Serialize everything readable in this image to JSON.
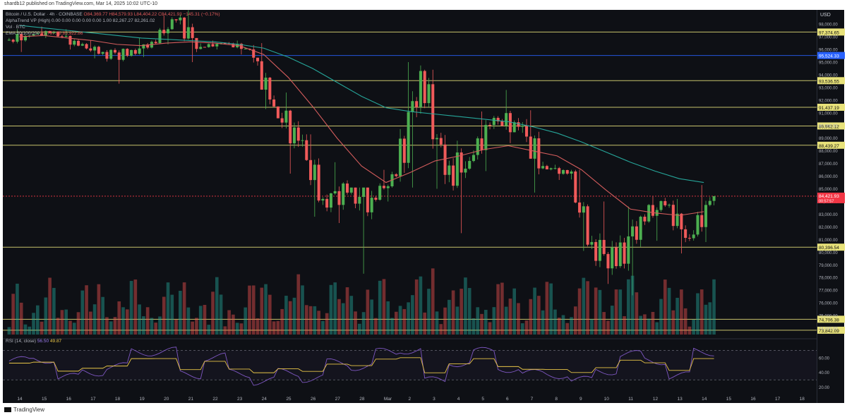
{
  "header": {
    "published_line": "shardb12 published on TradingView.com, Mar 14, 2025 10:02 UTC-10"
  },
  "legend": {
    "symbol_line": "Bitcoin / U.S. Dollar · 4h · COINBASE",
    "ohlc": "O84,369.77 H84,579.93 L84,404.22 C84,421.93 −145.31 (−0.17%)",
    "indicator1": "AlphaTrend VP (High)",
    "indicator1_values": "0.00 0.00 0.00 0.00 0.00 1.00 82,267.27 82,261.02",
    "indicator2": "Vol · BTC",
    "indicator3": "EMA 50/100/200",
    "indicator3_values": "83,797.49 85,922.86"
  },
  "rsi": {
    "label": "RSI (14, close)",
    "value1": "56.50",
    "value2": "49.87"
  },
  "footer": {
    "brand": "TradingView"
  },
  "price_axis": {
    "currency": "USD",
    "ticks": [
      "98,000.00",
      "97,000.00",
      "96,000.00",
      "95,000.00",
      "94,000.00",
      "93,000.00",
      "92,000.00",
      "91,000.00",
      "90,000.00",
      "89,000.00",
      "88,000.00",
      "87,000.00",
      "86,000.00",
      "85,000.00",
      "84,000.00",
      "83,000.00",
      "82,000.00",
      "81,000.00",
      "80,000.00",
      "79,000.00",
      "78,000.00",
      "77,000.00",
      "76,000.00",
      "75,000.00",
      "74,000.00"
    ],
    "ticks_numeric": [
      98000,
      97000,
      96000,
      95000,
      94000,
      93000,
      92000,
      91000,
      90000,
      89000,
      88000,
      87000,
      86000,
      85000,
      84000,
      83000,
      82000,
      81000,
      80000,
      79000,
      78000,
      77000,
      76000,
      75000,
      74000
    ],
    "range": [
      73500,
      98900
    ]
  },
  "levels": [
    {
      "label": "97,374.65",
      "value": 97374.65,
      "color": "#e8e27a"
    },
    {
      "label": "95,524.33",
      "value": 95524.33,
      "color": "#2962ff"
    },
    {
      "label": "93,536.55",
      "value": 93536.55,
      "color": "#e8e27a"
    },
    {
      "label": "91,437.19",
      "value": 91437.19,
      "color": "#e8e27a"
    },
    {
      "label": "89,962.12",
      "value": 89962.12,
      "color": "#e8e27a"
    },
    {
      "label": "88,439.27",
      "value": 88439.27,
      "color": "#e8e27a"
    },
    {
      "label": "80,396.54",
      "value": 80396.54,
      "color": "#e8e27a"
    },
    {
      "label": "74,706.38",
      "value": 74706.38,
      "color": "#e8e27a"
    },
    {
      "label": "73,842.09",
      "value": 73842.09,
      "color": "#e8e27a"
    }
  ],
  "current_price": {
    "label": "84,421.93",
    "sub": "00:57:57",
    "value": 84421.93,
    "color": "#f23645"
  },
  "rsi_axis": {
    "ticks": [
      "60.00",
      "40.00",
      "20.00"
    ],
    "ticks_numeric": [
      60,
      40,
      20
    ]
  },
  "time_axis": {
    "labels": [
      "14",
      "15",
      "16",
      "17",
      "18",
      "19",
      "20",
      "21",
      "22",
      "23",
      "24",
      "25",
      "26",
      "27",
      "28",
      "Mar",
      "2",
      "3",
      "4",
      "5",
      "6",
      "7",
      "8",
      "9",
      "10",
      "11",
      "12",
      "13",
      "14",
      "15",
      "16",
      "17",
      "18"
    ]
  },
  "chart_data": {
    "type": "candlestick",
    "symbol": "Bitcoin / U.S. Dollar",
    "timeframe": "4h",
    "exchange": "COINBASE",
    "ylim": [
      73500,
      98900
    ],
    "x_categories": [
      "14",
      "15",
      "16",
      "17",
      "18",
      "19",
      "20",
      "21",
      "22",
      "23",
      "24",
      "25",
      "26",
      "27",
      "28",
      "Mar",
      "2",
      "3",
      "4",
      "5",
      "6",
      "7",
      "8",
      "9",
      "10",
      "11",
      "12",
      "13",
      "14",
      "15",
      "16",
      "17",
      "18"
    ],
    "daily_ohlc": [
      {
        "day": "14",
        "o": 96700,
        "h": 97600,
        "l": 95800,
        "c": 97100
      },
      {
        "day": "15",
        "o": 97100,
        "h": 97800,
        "l": 96900,
        "c": 97400
      },
      {
        "day": "16",
        "o": 97400,
        "h": 97600,
        "l": 96000,
        "c": 96300
      },
      {
        "day": "17",
        "o": 96300,
        "h": 96700,
        "l": 95300,
        "c": 95800
      },
      {
        "day": "18",
        "o": 95800,
        "h": 96100,
        "l": 93300,
        "c": 95500
      },
      {
        "day": "19",
        "o": 95500,
        "h": 96900,
        "l": 95400,
        "c": 96600
      },
      {
        "day": "20",
        "o": 96600,
        "h": 98700,
        "l": 96400,
        "c": 98300
      },
      {
        "day": "21",
        "o": 98300,
        "h": 99100,
        "l": 95000,
        "c": 96200
      },
      {
        "day": "22",
        "o": 96200,
        "h": 96700,
        "l": 96000,
        "c": 96500
      },
      {
        "day": "23",
        "o": 96500,
        "h": 96700,
        "l": 95600,
        "c": 96000
      },
      {
        "day": "24",
        "o": 96000,
        "h": 96500,
        "l": 91300,
        "c": 91500
      },
      {
        "day": "25",
        "o": 91500,
        "h": 92600,
        "l": 86200,
        "c": 88800
      },
      {
        "day": "26",
        "o": 88800,
        "h": 89300,
        "l": 82800,
        "c": 84200
      },
      {
        "day": "27",
        "o": 84200,
        "h": 87100,
        "l": 82300,
        "c": 84700
      },
      {
        "day": "28",
        "o": 84700,
        "h": 85100,
        "l": 78300,
        "c": 84300
      },
      {
        "day": "Mar",
        "o": 84300,
        "h": 86500,
        "l": 84000,
        "c": 86000
      },
      {
        "day": "2",
        "o": 86000,
        "h": 95000,
        "l": 85100,
        "c": 94300
      },
      {
        "day": "3",
        "o": 94300,
        "h": 94400,
        "l": 85000,
        "c": 86100
      },
      {
        "day": "4",
        "o": 86100,
        "h": 88800,
        "l": 81500,
        "c": 87200
      },
      {
        "day": "5",
        "o": 87200,
        "h": 91100,
        "l": 86400,
        "c": 90600
      },
      {
        "day": "6",
        "o": 90600,
        "h": 92800,
        "l": 88600,
        "c": 89900
      },
      {
        "day": "7",
        "o": 89900,
        "h": 91200,
        "l": 84700,
        "c": 86800
      },
      {
        "day": "8",
        "o": 86800,
        "h": 86900,
        "l": 85700,
        "c": 86200
      },
      {
        "day": "9",
        "o": 86200,
        "h": 86500,
        "l": 80100,
        "c": 80800
      },
      {
        "day": "10",
        "o": 80800,
        "h": 84000,
        "l": 77500,
        "c": 78900
      },
      {
        "day": "11",
        "o": 78900,
        "h": 83600,
        "l": 76600,
        "c": 82800
      },
      {
        "day": "12",
        "o": 82800,
        "h": 84400,
        "l": 80900,
        "c": 83700
      },
      {
        "day": "13",
        "o": 83700,
        "h": 84200,
        "l": 79900,
        "c": 81100
      },
      {
        "day": "14",
        "o": 81100,
        "h": 85300,
        "l": 80800,
        "c": 84422
      }
    ],
    "emas": [
      {
        "name": "EMA 50",
        "color": "#d35c5c",
        "values": [
          97000,
          97100,
          96900,
          96700,
          96400,
          96300,
          96500,
          96600,
          96500,
          96300,
          95600,
          93800,
          91500,
          89000,
          86800,
          85500,
          86300,
          87200,
          87600,
          88100,
          88400,
          88000,
          87600,
          86500,
          84900,
          83400,
          83100,
          82900,
          83200
        ]
      },
      {
        "name": "EMA 200",
        "color": "#26a69a",
        "values": [
          97900,
          97700,
          97500,
          97300,
          97100,
          96900,
          96800,
          96700,
          96600,
          96400,
          96100,
          95400,
          94500,
          93400,
          92300,
          91400,
          91100,
          90900,
          90700,
          90500,
          90300,
          89900,
          89400,
          88700,
          87900,
          87100,
          86400,
          85800,
          85500
        ]
      }
    ],
    "volume_series_note": "relative volume bars green/red per candle direction",
    "rsi": {
      "name": "RSI (14, close)",
      "last": 56.5,
      "ma_last": 49.87,
      "levels": [
        70,
        30
      ]
    }
  }
}
